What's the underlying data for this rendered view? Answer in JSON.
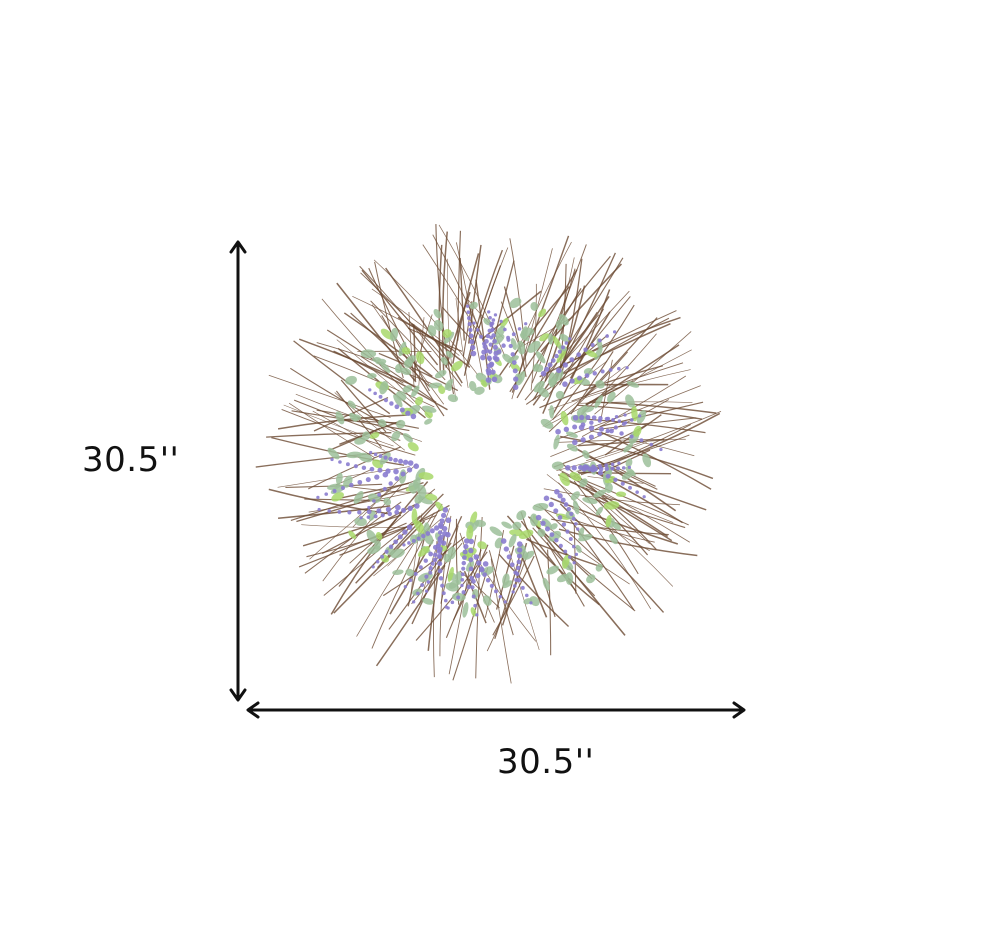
{
  "product": {
    "height_label": "30.5''",
    "width_label": "30.5''"
  },
  "colors": {
    "twig": "#6b4a32",
    "leaf": "#9cbf9a",
    "bright_leaf": "#a8d86a",
    "lavender": "#8a7ccf",
    "arrow": "#111111"
  }
}
